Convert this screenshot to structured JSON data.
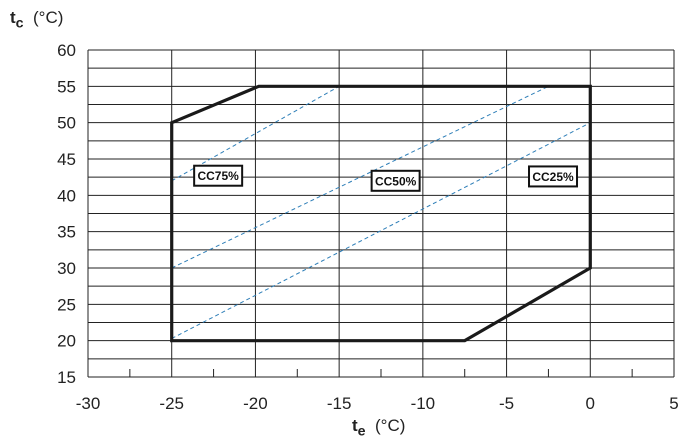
{
  "chart_data": {
    "type": "line",
    "title": "",
    "y_axis": {
      "symbol": "t",
      "subscript": "c",
      "unit": "(°C)",
      "min": 15,
      "max": 60,
      "major_step": 5,
      "minor_step": 2.5
    },
    "x_axis": {
      "symbol": "t",
      "subscript": "e",
      "unit": "(°C)",
      "min": -30,
      "max": 5,
      "major_step": 5,
      "minor_step": 2.5
    },
    "y_ticks": [
      "15",
      "20",
      "25",
      "30",
      "35",
      "40",
      "45",
      "50",
      "55",
      "60"
    ],
    "x_ticks": [
      "-30",
      "-25",
      "-20",
      "-15",
      "-10",
      "-5",
      "0",
      "5"
    ],
    "grid": true,
    "envelope": {
      "color": "#1a1a1a",
      "points": [
        [
          -25,
          50
        ],
        [
          -19.8,
          55
        ],
        [
          0,
          55
        ],
        [
          0,
          30
        ],
        [
          -7.5,
          20
        ],
        [
          -25,
          20
        ]
      ]
    },
    "capacity_lines": {
      "color": "#2f7fb8",
      "style": "dashed",
      "lines": [
        {
          "label": "CC75%",
          "points": [
            [
              -25,
              42
            ],
            [
              -15,
              55
            ]
          ],
          "label_at": [
            -23.6,
            42.7
          ]
        },
        {
          "label": "CC50%",
          "points": [
            [
              -25,
              30
            ],
            [
              -2.5,
              55
            ]
          ],
          "label_at": [
            -13,
            42
          ]
        },
        {
          "label": "CC25%",
          "points": [
            [
              -25,
              20.3
            ],
            [
              0,
              50
            ]
          ],
          "label_at": [
            -3.6,
            42.6
          ]
        }
      ]
    }
  }
}
